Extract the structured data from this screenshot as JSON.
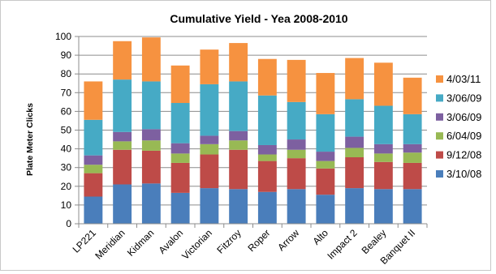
{
  "chart_data": {
    "type": "bar",
    "stacked": true,
    "title": "Cumulative Yield - Yea 2008-2010",
    "xlabel": "",
    "ylabel": "Plate Meter Clicks",
    "ylim": [
      0,
      100
    ],
    "yticks": [
      0,
      10,
      20,
      30,
      40,
      50,
      60,
      70,
      80,
      90,
      100
    ],
    "grid": true,
    "legend_position": "right",
    "categories": [
      "LP221",
      "Meridian",
      "Kidman",
      "Avalon",
      "Victorian",
      "Fitzroy",
      "Roper",
      "Arrow",
      "Alto",
      "Impact 2",
      "Bealey",
      "Banquet II"
    ],
    "series": [
      {
        "name": "3/10/08",
        "color": "#4a7ebb",
        "values": [
          14.5,
          21,
          21.5,
          16.5,
          19,
          18.5,
          17,
          18.5,
          15.5,
          19,
          18.5,
          18.5
        ]
      },
      {
        "name": "9/12/08",
        "color": "#be4b48",
        "values": [
          12.5,
          18.5,
          17.5,
          16,
          18,
          21,
          16.5,
          16.5,
          14,
          16.5,
          14.5,
          14
        ]
      },
      {
        "name": "6/04/09",
        "color": "#98b954",
        "values": [
          4.5,
          4.5,
          5.5,
          5,
          5.5,
          5,
          3.5,
          4.5,
          4,
          5,
          4.5,
          5.5
        ]
      },
      {
        "name": "3/06/09",
        "color": "#7d60a0",
        "values": [
          5,
          5,
          6,
          5.5,
          4.5,
          5,
          5,
          5.5,
          5,
          6,
          5,
          4.5
        ]
      },
      {
        "name": "3/06/09",
        "color": "#46aac5",
        "values": [
          19,
          28,
          25.5,
          21.5,
          27.5,
          26.5,
          26.5,
          20,
          20,
          20,
          20.5,
          16
        ]
      },
      {
        "name": "4/03/11",
        "color": "#f69240",
        "values": [
          20.5,
          20.5,
          23.5,
          20,
          18.5,
          20.5,
          19.5,
          22.5,
          22,
          22,
          23,
          19.5
        ]
      }
    ]
  }
}
